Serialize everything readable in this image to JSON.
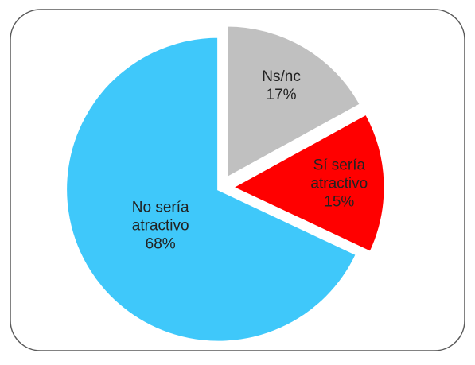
{
  "chart_data": {
    "type": "pie",
    "categories": [
      "Ns/nc",
      "Sí sería atractivo",
      "No sería atractivo"
    ],
    "values": [
      17,
      15,
      68
    ],
    "value_labels": [
      "17%",
      "15%",
      "68%"
    ],
    "colors": [
      "#c0c0c0",
      "#ff0000",
      "#3fc8fa"
    ],
    "label_colors": [
      "#222222",
      "#ffffff",
      "#222222"
    ]
  }
}
